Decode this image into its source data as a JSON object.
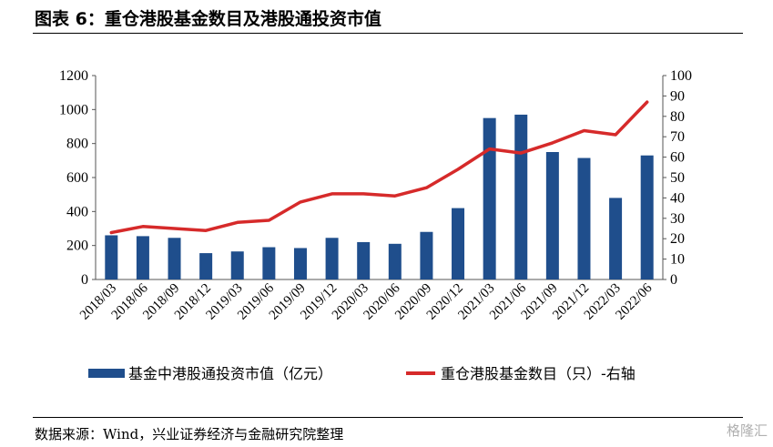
{
  "title": "图表 6：重仓港股基金数目及港股通投资市值",
  "source": "数据来源：Wind，兴业证券经济与金融研究院整理",
  "watermark": "格隆汇",
  "colors": {
    "bar": "#1f4e8c",
    "line": "#d62a2a",
    "axis": "#555555"
  },
  "chart_data": {
    "type": "bar+line",
    "categories": [
      "2018/03",
      "2018/06",
      "2018/09",
      "2018/12",
      "2019/03",
      "2019/06",
      "2019/09",
      "2019/12",
      "2020/03",
      "2020/06",
      "2020/09",
      "2020/12",
      "2021/03",
      "2021/06",
      "2021/09",
      "2021/12",
      "2022/03",
      "2022/06"
    ],
    "y_left": {
      "min": 0,
      "max": 1200,
      "step": 200,
      "ticks": [
        0,
        200,
        400,
        600,
        800,
        1000,
        1200
      ]
    },
    "y_right": {
      "min": 0,
      "max": 100,
      "step": 10,
      "ticks": [
        0,
        10,
        20,
        30,
        40,
        50,
        60,
        70,
        80,
        90,
        100
      ]
    },
    "series": [
      {
        "name": "基金中港股通投资市值（亿元）",
        "type": "bar",
        "axis": "left",
        "values": [
          260,
          255,
          245,
          155,
          165,
          190,
          185,
          245,
          220,
          210,
          280,
          420,
          950,
          970,
          750,
          715,
          480,
          730
        ]
      },
      {
        "name": "重仓港股基金数目（只）-右轴",
        "type": "line",
        "axis": "right",
        "values": [
          23,
          26,
          25,
          24,
          28,
          29,
          38,
          42,
          42,
          41,
          45,
          54,
          64,
          62,
          67,
          73,
          71,
          87
        ]
      }
    ],
    "legend_position": "bottom",
    "grid": false
  }
}
